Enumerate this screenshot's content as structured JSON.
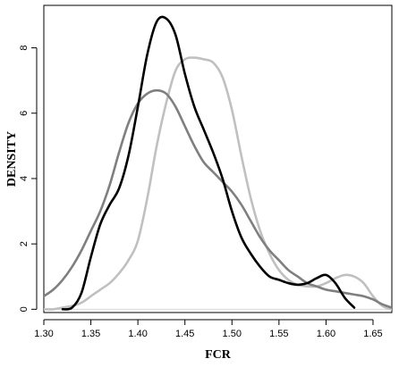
{
  "chart_data": {
    "type": "line",
    "title": "",
    "xlabel": "FCR",
    "ylabel": "DENSITY",
    "xlim": [
      1.3,
      1.67
    ],
    "ylim": [
      -0.1,
      9.3
    ],
    "x_ticks": [
      1.3,
      1.35,
      1.4,
      1.45,
      1.5,
      1.55,
      1.6,
      1.65
    ],
    "x_tick_labels": [
      "1.30",
      "1.35",
      "1.40",
      "1.45",
      "1.50",
      "1.55",
      "1.60",
      "1.65"
    ],
    "y_ticks": [
      0,
      2,
      4,
      6,
      8
    ],
    "y_tick_labels": [
      "0",
      "2",
      "4",
      "6",
      "8"
    ],
    "grid": false,
    "legend": "none",
    "baseline": {
      "y": 0,
      "color": "#d9d9d9"
    },
    "series": [
      {
        "color": "#000000",
        "x": [
          1.32,
          1.33,
          1.34,
          1.35,
          1.36,
          1.37,
          1.38,
          1.39,
          1.4,
          1.41,
          1.42,
          1.43,
          1.44,
          1.45,
          1.46,
          1.47,
          1.48,
          1.49,
          1.5,
          1.51,
          1.52,
          1.53,
          1.54,
          1.55,
          1.56,
          1.57,
          1.58,
          1.59,
          1.6,
          1.61,
          1.62,
          1.63
        ],
        "y": [
          0.0,
          0.05,
          0.5,
          1.6,
          2.6,
          3.2,
          3.7,
          4.7,
          6.2,
          7.8,
          8.8,
          8.9,
          8.4,
          7.2,
          6.2,
          5.5,
          4.8,
          4.0,
          3.0,
          2.2,
          1.7,
          1.3,
          1.0,
          0.9,
          0.8,
          0.75,
          0.8,
          0.95,
          1.05,
          0.8,
          0.35,
          0.05
        ]
      },
      {
        "color": "#7f7f7f",
        "x": [
          1.3,
          1.31,
          1.32,
          1.33,
          1.34,
          1.35,
          1.36,
          1.37,
          1.38,
          1.39,
          1.4,
          1.41,
          1.42,
          1.43,
          1.44,
          1.45,
          1.46,
          1.47,
          1.48,
          1.49,
          1.5,
          1.51,
          1.52,
          1.53,
          1.54,
          1.55,
          1.56,
          1.57,
          1.58,
          1.59,
          1.6,
          1.61,
          1.62,
          1.63,
          1.64,
          1.65,
          1.66,
          1.67
        ],
        "y": [
          0.4,
          0.6,
          0.9,
          1.3,
          1.8,
          2.4,
          3.0,
          3.8,
          4.8,
          5.7,
          6.3,
          6.6,
          6.7,
          6.6,
          6.2,
          5.6,
          5.0,
          4.5,
          4.2,
          3.9,
          3.6,
          3.2,
          2.7,
          2.2,
          1.8,
          1.5,
          1.2,
          1.0,
          0.8,
          0.7,
          0.6,
          0.55,
          0.5,
          0.45,
          0.4,
          0.3,
          0.15,
          0.05
        ]
      },
      {
        "color": "#c0c0c0",
        "x": [
          1.3,
          1.31,
          1.32,
          1.33,
          1.34,
          1.35,
          1.36,
          1.37,
          1.38,
          1.39,
          1.4,
          1.41,
          1.42,
          1.43,
          1.44,
          1.45,
          1.46,
          1.47,
          1.48,
          1.49,
          1.5,
          1.51,
          1.52,
          1.53,
          1.54,
          1.55,
          1.56,
          1.57,
          1.58,
          1.59,
          1.6,
          1.61,
          1.62,
          1.63,
          1.64,
          1.65,
          1.66,
          1.67
        ],
        "y": [
          0.0,
          0.0,
          0.05,
          0.1,
          0.2,
          0.4,
          0.6,
          0.8,
          1.1,
          1.5,
          2.1,
          3.4,
          5.0,
          6.3,
          7.3,
          7.65,
          7.7,
          7.65,
          7.55,
          7.1,
          6.1,
          4.7,
          3.4,
          2.4,
          1.7,
          1.2,
          0.9,
          0.75,
          0.7,
          0.7,
          0.8,
          0.95,
          1.05,
          1.0,
          0.8,
          0.4,
          0.1,
          0.0
        ]
      }
    ]
  }
}
